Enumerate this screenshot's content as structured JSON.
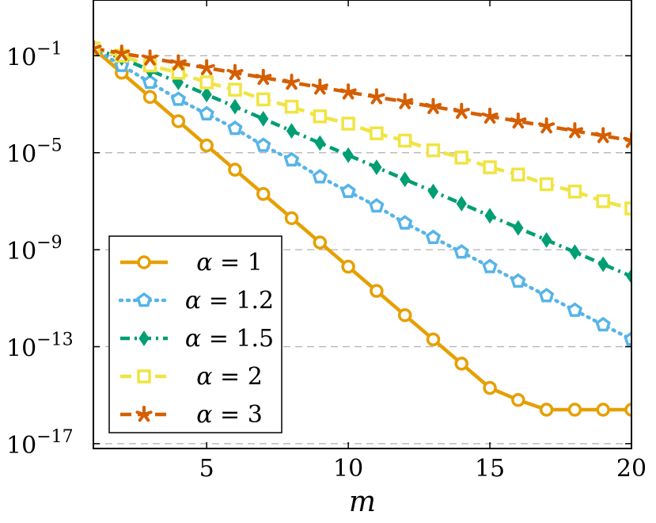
{
  "chart_data": {
    "type": "line",
    "title": "",
    "xlabel": "m",
    "ylabel": "",
    "xlim": [
      1,
      20
    ],
    "ylim_log10": [
      -17.2,
      1.3
    ],
    "y_scale": "log",
    "grid": "horizontal dashed",
    "legend_position": "bottom-left",
    "x_ticks": [
      5,
      10,
      15,
      20
    ],
    "x_tick_labels": [
      "5",
      "10",
      "15",
      "20"
    ],
    "y_ticks_log10": [
      -1,
      -5,
      -9,
      -13,
      -17
    ],
    "y_tick_labels": [
      {
        "base": "10",
        "exp": "−1"
      },
      {
        "base": "10",
        "exp": "−5"
      },
      {
        "base": "10",
        "exp": "−9"
      },
      {
        "base": "10",
        "exp": "−13"
      },
      {
        "base": "10",
        "exp": "−17"
      }
    ],
    "x": [
      1,
      2,
      3,
      4,
      5,
      6,
      7,
      8,
      9,
      10,
      11,
      12,
      13,
      14,
      15,
      16,
      17,
      18,
      19,
      20
    ],
    "series": [
      {
        "name": "α = 1",
        "color": "#E69F00",
        "marker": "circle",
        "dash": "solid",
        "values_log10": [
          -0.7,
          -1.7,
          -2.7,
          -3.7,
          -4.7,
          -5.7,
          -6.7,
          -7.7,
          -8.7,
          -9.7,
          -10.7,
          -11.7,
          -12.7,
          -13.7,
          -14.7,
          -15.2,
          -15.6,
          -15.6,
          -15.6,
          -15.6
        ]
      },
      {
        "name": "α = 1.2",
        "color": "#56B4E9",
        "marker": "pentagon",
        "dash": "dotted",
        "values_log10": [
          -0.7,
          -1.4,
          -2.1,
          -2.8,
          -3.4,
          -4.0,
          -4.7,
          -5.3,
          -6.0,
          -6.6,
          -7.2,
          -7.9,
          -8.5,
          -9.1,
          -9.7,
          -10.3,
          -10.9,
          -11.5,
          -12.1,
          -12.7
        ]
      },
      {
        "name": "α = 1.5",
        "color": "#009E73",
        "marker": "diamond",
        "dash": "dash-dot",
        "values_log10": [
          -0.7,
          -1.1,
          -1.6,
          -2.1,
          -2.6,
          -3.1,
          -3.6,
          -4.1,
          -4.6,
          -5.1,
          -5.6,
          -6.1,
          -6.6,
          -7.1,
          -7.6,
          -8.1,
          -8.6,
          -9.1,
          -9.6,
          -10.1
        ]
      },
      {
        "name": "α = 2",
        "color": "#F0E442",
        "marker": "square",
        "dash": "dashed",
        "values_log10": [
          -0.7,
          -1.0,
          -1.4,
          -1.7,
          -2.1,
          -2.4,
          -2.8,
          -3.1,
          -3.5,
          -3.8,
          -4.2,
          -4.5,
          -4.9,
          -5.2,
          -5.6,
          -5.9,
          -6.3,
          -6.6,
          -7.0,
          -7.3
        ]
      },
      {
        "name": "α = 3",
        "color": "#D55E00",
        "marker": "asterisk",
        "dash": "dashed",
        "values_log10": [
          -0.7,
          -0.9,
          -1.1,
          -1.3,
          -1.5,
          -1.7,
          -1.9,
          -2.1,
          -2.3,
          -2.5,
          -2.7,
          -2.9,
          -3.1,
          -3.3,
          -3.5,
          -3.7,
          -3.9,
          -4.1,
          -4.3,
          -4.5
        ]
      }
    ]
  }
}
